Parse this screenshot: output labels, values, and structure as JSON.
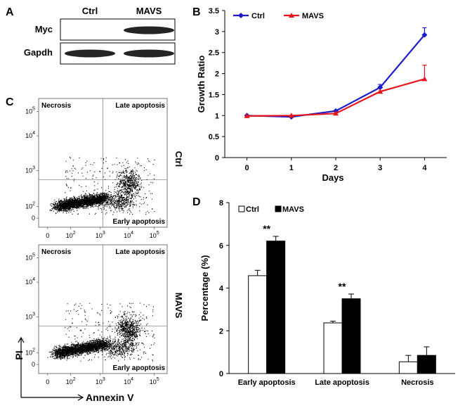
{
  "panel_labels": {
    "a": "A",
    "b": "B",
    "c": "C",
    "d": "D"
  },
  "western_blot": {
    "lanes": [
      "Ctrl",
      "MAVS"
    ],
    "rows": [
      {
        "label": "Myc",
        "bands": [
          0.0,
          1.0
        ]
      },
      {
        "label": "Gapdh",
        "bands": [
          1.0,
          1.0
        ]
      }
    ]
  },
  "flow": {
    "x_axis_label": "Annexin V",
    "y_axis_label": "PI",
    "quadrants": {
      "top_left": "Necrosis",
      "top_right": "Late apoptosis",
      "bottom_right": "Early apoptosis"
    },
    "x_ticks": [
      {
        "base": "0",
        "exp": ""
      },
      {
        "base": "10",
        "exp": "2"
      },
      {
        "base": "10",
        "exp": "3"
      },
      {
        "base": "10",
        "exp": "4"
      },
      {
        "base": "10",
        "exp": "5"
      }
    ],
    "y_ticks": [
      {
        "base": "0",
        "exp": ""
      },
      {
        "base": "10",
        "exp": "2"
      },
      {
        "base": "10",
        "exp": "3"
      },
      {
        "base": "10",
        "exp": "4"
      },
      {
        "base": "10",
        "exp": "5"
      }
    ],
    "plots": [
      {
        "condition": "Ctrl"
      },
      {
        "condition": "MAVS"
      }
    ]
  },
  "chart_data": [
    {
      "type": "line",
      "panel": "B",
      "title": "",
      "xlabel": "Days",
      "ylabel": "Growth Ratio",
      "x": [
        0,
        1,
        2,
        3,
        4
      ],
      "xlim": [
        -0.5,
        4.5
      ],
      "ylim": [
        0,
        3.5
      ],
      "y_ticks": [
        0,
        0.5,
        1,
        1.5,
        2,
        2.5,
        3,
        3.5
      ],
      "y_tick_labels": [
        "0",
        "0.5",
        "1",
        "1.5",
        "2",
        "2.5",
        "3",
        "3.5"
      ],
      "series": [
        {
          "name": "Ctrl",
          "color": "#1a1acd",
          "marker": "diamond",
          "values": [
            1.0,
            0.97,
            1.11,
            1.67,
            2.92
          ],
          "error": [
            0.0,
            0.0,
            0.0,
            0.07,
            0.17
          ]
        },
        {
          "name": "MAVS",
          "color": "#e8141e",
          "marker": "triangle",
          "values": [
            0.99,
            1.0,
            1.05,
            1.57,
            1.87
          ],
          "error": [
            0.0,
            0.0,
            0.0,
            0.0,
            0.33
          ]
        }
      ],
      "legend": "top-left"
    },
    {
      "type": "bar",
      "panel": "D",
      "title": "",
      "xlabel": "",
      "ylabel": "Percentage (%)",
      "categories": [
        "Early apoptosis",
        "Late apoptosis",
        "Necrosis"
      ],
      "ylim": [
        0,
        8
      ],
      "y_ticks": [
        0,
        2,
        4,
        6,
        8
      ],
      "y_tick_labels": [
        "0",
        "2",
        "4",
        "6",
        "8"
      ],
      "series": [
        {
          "name": "Ctrl",
          "fill": "#ffffff",
          "values": [
            4.58,
            2.37,
            0.55
          ],
          "error": [
            0.25,
            0.08,
            0.3
          ]
        },
        {
          "name": "MAVS",
          "fill": "#000000",
          "values": [
            6.2,
            3.5,
            0.85
          ],
          "error": [
            0.22,
            0.22,
            0.4
          ]
        }
      ],
      "annotations": [
        "**",
        "**",
        ""
      ],
      "legend": "top-left"
    }
  ]
}
